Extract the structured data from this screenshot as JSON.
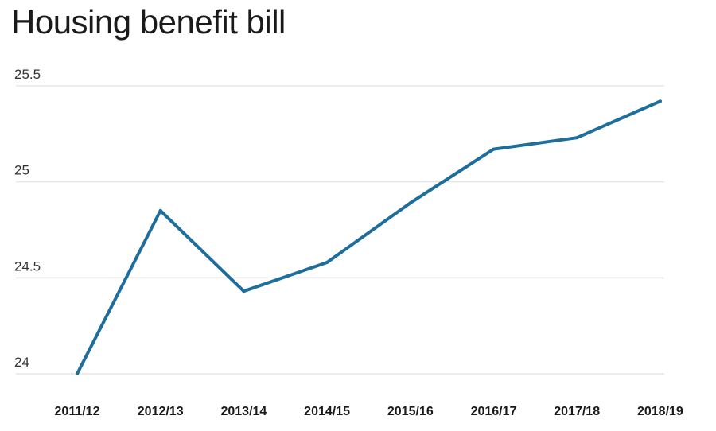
{
  "chart_data": {
    "type": "line",
    "title": "Housing benefit bill",
    "xlabel": "",
    "ylabel": "",
    "categories": [
      "2011/12",
      "2012/13",
      "2013/14",
      "2014/15",
      "2015/16",
      "2016/17",
      "2017/18",
      "2018/19"
    ],
    "series": [
      {
        "values": [
          24.0,
          24.85,
          24.43,
          24.58,
          24.89,
          25.17,
          25.23,
          25.42
        ]
      }
    ],
    "ylim": [
      24,
      25.5
    ],
    "yticks": [
      "24",
      "24.5",
      "25",
      "25.5"
    ],
    "grid": true,
    "legend": "none",
    "line_color": "#1e6e9c",
    "grid_color": "#e6e6e6"
  }
}
